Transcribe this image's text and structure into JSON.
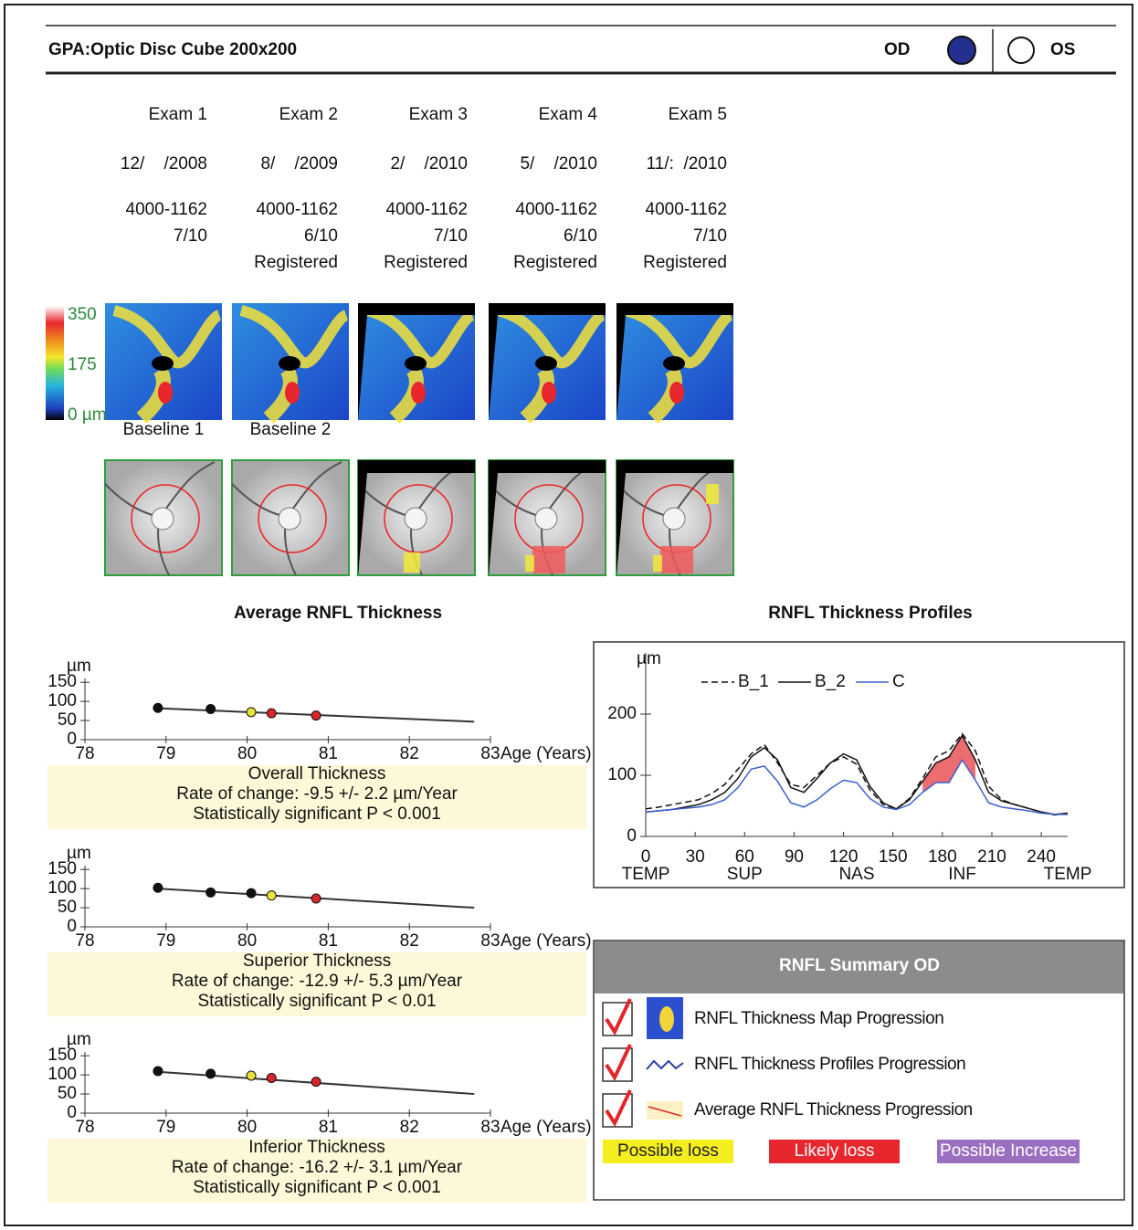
{
  "header": {
    "title": "GPA:Optic Disc Cube 200x200",
    "od": "OD",
    "os": "OS"
  },
  "exams": [
    {
      "name": "Exam 1",
      "date": "12/    /2008",
      "serial": "4000-1162",
      "signal": "7/10"
    },
    {
      "name": "Exam 2",
      "date": "8/    /2009",
      "serial": "4000-1162",
      "signal": "6/10",
      "status": "Registered"
    },
    {
      "name": "Exam 3",
      "date": "2/    /2010",
      "serial": "4000-1162",
      "signal": "7/10",
      "status": "Registered"
    },
    {
      "name": "Exam 4",
      "date": "5/    /2010",
      "serial": "4000-1162",
      "signal": "6/10",
      "status": "Registered"
    },
    {
      "name": "Exam 5",
      "date": "11/:  /2010",
      "serial": "4000-1162",
      "signal": "7/10",
      "status": "Registered"
    }
  ],
  "colorbar": {
    "ticks": [
      350,
      175,
      {
        "value": 0,
        "label": "0 µm"
      }
    ],
    "lim": [
      0,
      350
    ]
  },
  "baseline_labels": [
    "Baseline 1",
    "Baseline 2"
  ],
  "section_titles": [
    "Average RNFL Thickness",
    "RNFL Thickness Profiles"
  ],
  "chart_data": [
    {
      "type": "scatter",
      "ylabel": "µm",
      "xlabel": "Age (Years)",
      "xlim": [
        78,
        83
      ],
      "xticks": [
        78,
        79,
        80,
        81,
        82,
        83
      ],
      "ylim": [
        0,
        160
      ],
      "yticks": [
        0,
        50,
        100,
        150
      ],
      "x": [
        78.9,
        79.55,
        80.05,
        80.3,
        80.85
      ],
      "values": [
        83,
        80,
        72,
        69,
        63
      ],
      "point_colors": [
        "#111111",
        "#111111",
        "#e8e23a",
        "#d6262b",
        "#d6262b"
      ],
      "trend": {
        "x": [
          78.9,
          82.8
        ],
        "values": [
          82,
          47
        ]
      },
      "title": "Overall Thickness",
      "rate": "Rate of change: -9.5 +/- 2.2 µm/Year",
      "significance": "Statistically significant P < 0.001"
    },
    {
      "type": "scatter",
      "ylabel": "µm",
      "xlabel": "Age (Years)",
      "xlim": [
        78,
        83
      ],
      "xticks": [
        78,
        79,
        80,
        81,
        82,
        83
      ],
      "ylim": [
        0,
        160
      ],
      "yticks": [
        0,
        50,
        100,
        150
      ],
      "x": [
        78.9,
        79.55,
        80.05,
        80.3,
        80.85
      ],
      "values": [
        102,
        90,
        88,
        82,
        74
      ],
      "point_colors": [
        "#111111",
        "#111111",
        "#111111",
        "#e8e23a",
        "#d6262b"
      ],
      "trend": {
        "x": [
          78.9,
          82.8
        ],
        "values": [
          100,
          50
        ]
      },
      "title": "Superior Thickness",
      "rate": "Rate of change: -12.9 +/- 5.3 µm/Year",
      "significance": "Statistically significant P < 0.01"
    },
    {
      "type": "scatter",
      "ylabel": "µm",
      "xlabel": "Age (Years)",
      "xlim": [
        78,
        83
      ],
      "xticks": [
        78,
        79,
        80,
        81,
        82,
        83
      ],
      "ylim": [
        0,
        160
      ],
      "yticks": [
        0,
        50,
        100,
        150
      ],
      "x": [
        78.9,
        79.55,
        80.05,
        80.3,
        80.85
      ],
      "values": [
        110,
        103,
        98,
        92,
        82
      ],
      "point_colors": [
        "#111111",
        "#111111",
        "#e8e23a",
        "#d6262b",
        "#d6262b"
      ],
      "trend": {
        "x": [
          78.9,
          82.8
        ],
        "values": [
          108,
          50
        ]
      },
      "title": "Inferior Thickness",
      "rate": "Rate of change: -16.2 +/- 3.1 µm/Year",
      "significance": "Statistically significant P < 0.001"
    },
    {
      "type": "line",
      "ylabel": "µm",
      "xlim": [
        0,
        256
      ],
      "xticks": [
        0,
        30,
        60,
        90,
        120,
        150,
        180,
        210,
        240
      ],
      "ylim": [
        0,
        300
      ],
      "yticks": [
        0,
        100,
        200
      ],
      "region_labels": [
        {
          "value": 0,
          "label": "TEMP"
        },
        {
          "value": 60,
          "label": "SUP"
        },
        {
          "value": 128,
          "label": "NAS"
        },
        {
          "value": 192,
          "label": "INF"
        },
        {
          "value": 256,
          "label": "TEMP"
        }
      ],
      "x": [
        0,
        8,
        16,
        24,
        32,
        40,
        48,
        56,
        64,
        72,
        80,
        88,
        96,
        104,
        112,
        120,
        128,
        136,
        144,
        152,
        160,
        168,
        176,
        184,
        192,
        200,
        208,
        216,
        224,
        232,
        240,
        248,
        256
      ],
      "series": [
        {
          "name": "B_1",
          "color": "#111111",
          "dashed": true,
          "values": [
            45,
            48,
            52,
            56,
            60,
            70,
            85,
            110,
            135,
            150,
            120,
            85,
            80,
            100,
            120,
            130,
            118,
            76,
            52,
            45,
            62,
            95,
            130,
            140,
            168,
            140,
            82,
            60,
            52,
            46,
            40,
            35,
            38
          ]
        },
        {
          "name": "B_2",
          "color": "#111111",
          "dashed": false,
          "values": [
            40,
            42,
            44,
            48,
            52,
            60,
            72,
            95,
            130,
            145,
            125,
            80,
            72,
            95,
            120,
            135,
            125,
            82,
            55,
            45,
            60,
            90,
            120,
            130,
            165,
            125,
            72,
            58,
            52,
            46,
            40,
            36,
            38
          ]
        },
        {
          "name": "C",
          "color": "#3a5fcd",
          "dashed": false,
          "values": [
            40,
            42,
            44,
            46,
            48,
            52,
            60,
            80,
            110,
            115,
            90,
            55,
            48,
            60,
            78,
            92,
            88,
            62,
            48,
            44,
            52,
            72,
            88,
            88,
            125,
            92,
            55,
            48,
            45,
            42,
            38,
            36,
            36
          ]
        }
      ],
      "highlight": {
        "from": 168,
        "to": 200,
        "color": "#e8474c"
      }
    }
  ],
  "summary": {
    "title": "RNFL Summary OD",
    "items": [
      "RNFL Thickness Map Progression",
      "RNFL Thickness Profiles Progression",
      "Average RNFL Thickness Progression"
    ],
    "keys": [
      {
        "label": "Possible loss",
        "color": "#f5ee1f"
      },
      {
        "label": "Likely loss",
        "color": "#e8262d"
      },
      {
        "label": "Possible Increase",
        "color": "#9a6fc0"
      }
    ]
  }
}
